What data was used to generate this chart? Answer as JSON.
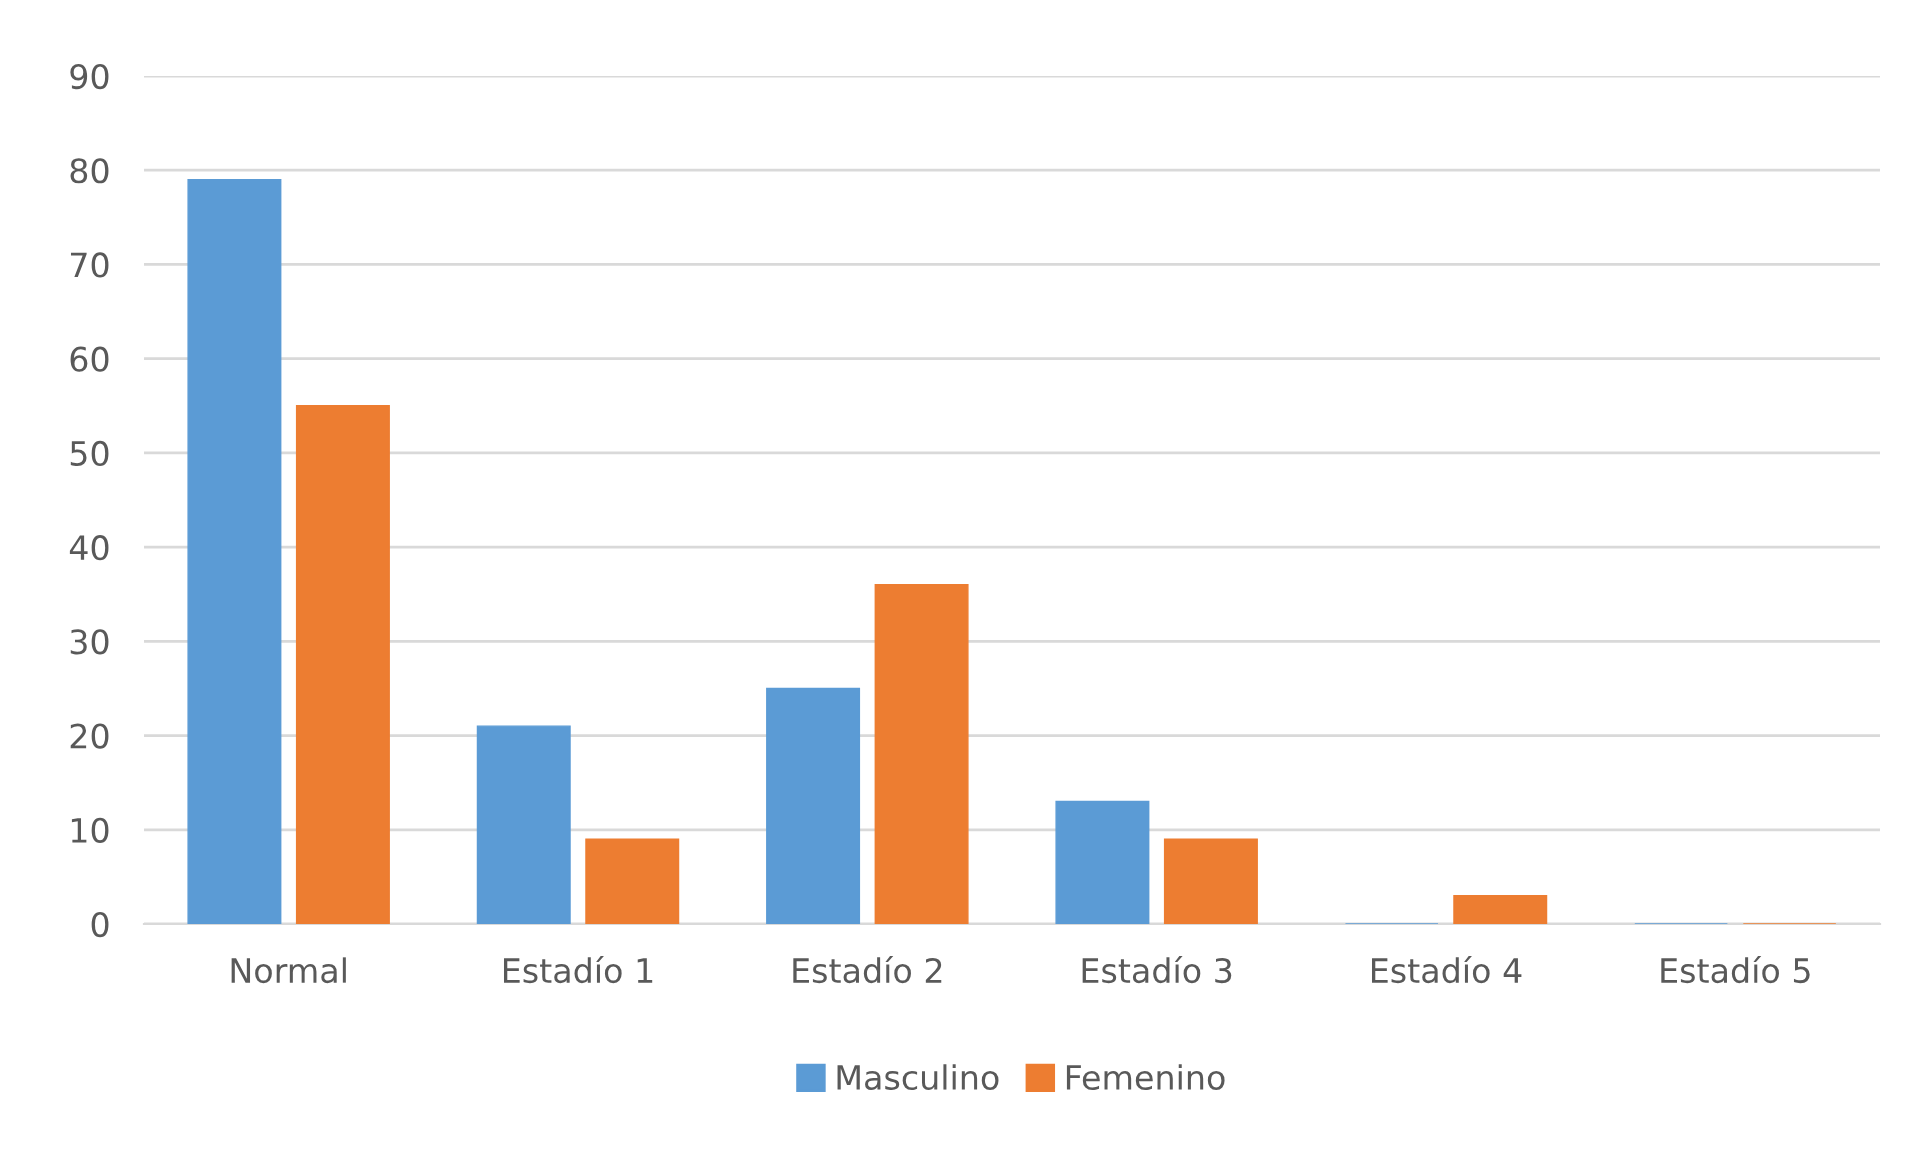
{
  "chart_data": {
    "type": "bar",
    "categories": [
      "Normal",
      "Estadío 1",
      "Estadío 2",
      "Estadío 3",
      "Estadío 4",
      "Estadío 5"
    ],
    "series": [
      {
        "name": "Masculino",
        "color": "#5b9bd5",
        "values": [
          79,
          21,
          25,
          13,
          0,
          0
        ]
      },
      {
        "name": "Femenino",
        "color": "#ed7d31",
        "values": [
          55,
          9,
          36,
          9,
          3,
          0
        ]
      }
    ],
    "ylim": [
      0,
      90
    ],
    "yticks": [
      0,
      10,
      20,
      30,
      40,
      50,
      60,
      70,
      80,
      90
    ],
    "grid": "y",
    "legend": "bottom"
  }
}
